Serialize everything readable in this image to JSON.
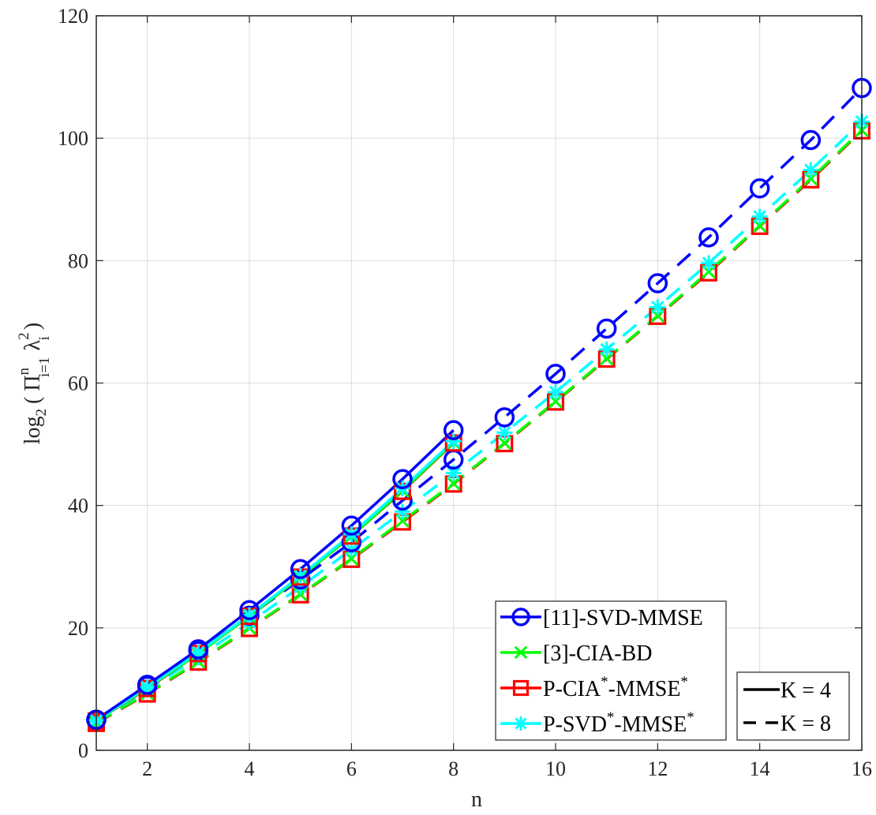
{
  "chart_data": {
    "type": "line",
    "title": "",
    "xlabel": "n",
    "ylabel": "log",
    "ylabel_sub": "2",
    "ylabel_rest": "( Π",
    "ylabel_pi_sup": "n",
    "ylabel_pi_sub": "i=1",
    "ylabel_lambda": "λ",
    "ylabel_lambda_sup": "2",
    "ylabel_lambda_sub": "i",
    "ylabel_close": ")",
    "xlim": [
      1,
      16
    ],
    "ylim": [
      0,
      120
    ],
    "xticks": [
      2,
      4,
      6,
      8,
      10,
      12,
      14,
      16
    ],
    "yticks": [
      0,
      20,
      40,
      60,
      80,
      100,
      120
    ],
    "grid": true,
    "legend_position": "bottom-right",
    "colors": {
      "svd": "#0000ff",
      "cia": "#00ff00",
      "pcia": "#ff0000",
      "psvd": "#00ffff"
    },
    "legend_methods": [
      {
        "key": "svd",
        "pre": "[11]-SVD-MMSE",
        "sup1": "",
        "mid": "",
        "sup2": "",
        "marker": "circle"
      },
      {
        "key": "cia",
        "pre": "[3]-CIA-BD",
        "sup1": "",
        "mid": "",
        "sup2": "",
        "marker": "x"
      },
      {
        "key": "pcia",
        "pre": "P-CIA",
        "sup1": "*",
        "mid": "-MMSE",
        "sup2": "*",
        "marker": "square"
      },
      {
        "key": "psvd",
        "pre": "P-SVD",
        "sup1": "*",
        "mid": "-MMSE",
        "sup2": "*",
        "marker": "star"
      }
    ],
    "legend_k": [
      {
        "label": "K = 4",
        "dash": "solid"
      },
      {
        "label": "K = 8",
        "dash": "dashed"
      }
    ],
    "series": [
      {
        "method": "svd",
        "k": "K = 4",
        "dash": "solid",
        "x": [
          1,
          2,
          3,
          4,
          5,
          6,
          7,
          8
        ],
        "values": [
          5.0,
          10.7,
          16.5,
          22.9,
          29.6,
          36.7,
          44.3,
          52.3
        ]
      },
      {
        "method": "cia",
        "k": "K = 4",
        "dash": "solid",
        "x": [
          1,
          2,
          3,
          4,
          5,
          6,
          7,
          8
        ],
        "values": [
          4.8,
          10.2,
          15.8,
          21.9,
          28.3,
          35.0,
          42.4,
          50.3
        ]
      },
      {
        "method": "pcia",
        "k": "K = 4",
        "dash": "solid",
        "x": [
          1,
          2,
          3,
          4,
          5,
          6,
          7,
          8
        ],
        "values": [
          4.8,
          10.1,
          15.8,
          21.9,
          28.3,
          35.0,
          42.3,
          50.2
        ]
      },
      {
        "method": "psvd",
        "k": "K = 4",
        "dash": "solid",
        "x": [
          1,
          2,
          3,
          4,
          5,
          6,
          7,
          8
        ],
        "values": [
          4.9,
          10.3,
          16.0,
          22.1,
          28.5,
          35.3,
          42.8,
          50.5
        ]
      },
      {
        "method": "svd",
        "k": "K = 8",
        "dash": "dashed",
        "x": [
          1,
          2,
          3,
          4,
          5,
          6,
          7,
          8,
          9,
          10,
          11,
          12,
          13,
          14,
          15,
          16
        ],
        "values": [
          5.0,
          10.5,
          16.2,
          22.0,
          27.9,
          34.0,
          40.8,
          47.5,
          54.4,
          61.5,
          68.9,
          76.3,
          83.8,
          91.8,
          99.7,
          108.2
        ]
      },
      {
        "method": "cia",
        "k": "K = 8",
        "dash": "dashed",
        "x": [
          1,
          2,
          3,
          4,
          5,
          6,
          7,
          8,
          9,
          10,
          11,
          12,
          13,
          14,
          15,
          16
        ],
        "values": [
          4.5,
          9.3,
          14.5,
          20.0,
          25.5,
          31.3,
          37.5,
          43.6,
          50.2,
          57.0,
          64.0,
          71.0,
          78.2,
          85.7,
          93.4,
          101.3
        ]
      },
      {
        "method": "pcia",
        "k": "K = 8",
        "dash": "dashed",
        "x": [
          1,
          2,
          3,
          4,
          5,
          6,
          7,
          8,
          9,
          10,
          11,
          12,
          13,
          14,
          15,
          16
        ],
        "values": [
          4.4,
          9.2,
          14.4,
          19.9,
          25.4,
          31.2,
          37.3,
          43.5,
          50.1,
          56.9,
          63.9,
          70.9,
          78.0,
          85.6,
          93.2,
          101.2
        ]
      },
      {
        "method": "psvd",
        "k": "K = 8",
        "dash": "dashed",
        "x": [
          1,
          2,
          3,
          4,
          5,
          6,
          7,
          8,
          9,
          10,
          11,
          12,
          13,
          14,
          15,
          16
        ],
        "values": [
          4.7,
          9.9,
          15.2,
          20.9,
          26.7,
          32.8,
          39.0,
          45.3,
          51.9,
          58.5,
          65.5,
          72.4,
          79.6,
          87.2,
          94.8,
          102.7
        ]
      }
    ]
  }
}
